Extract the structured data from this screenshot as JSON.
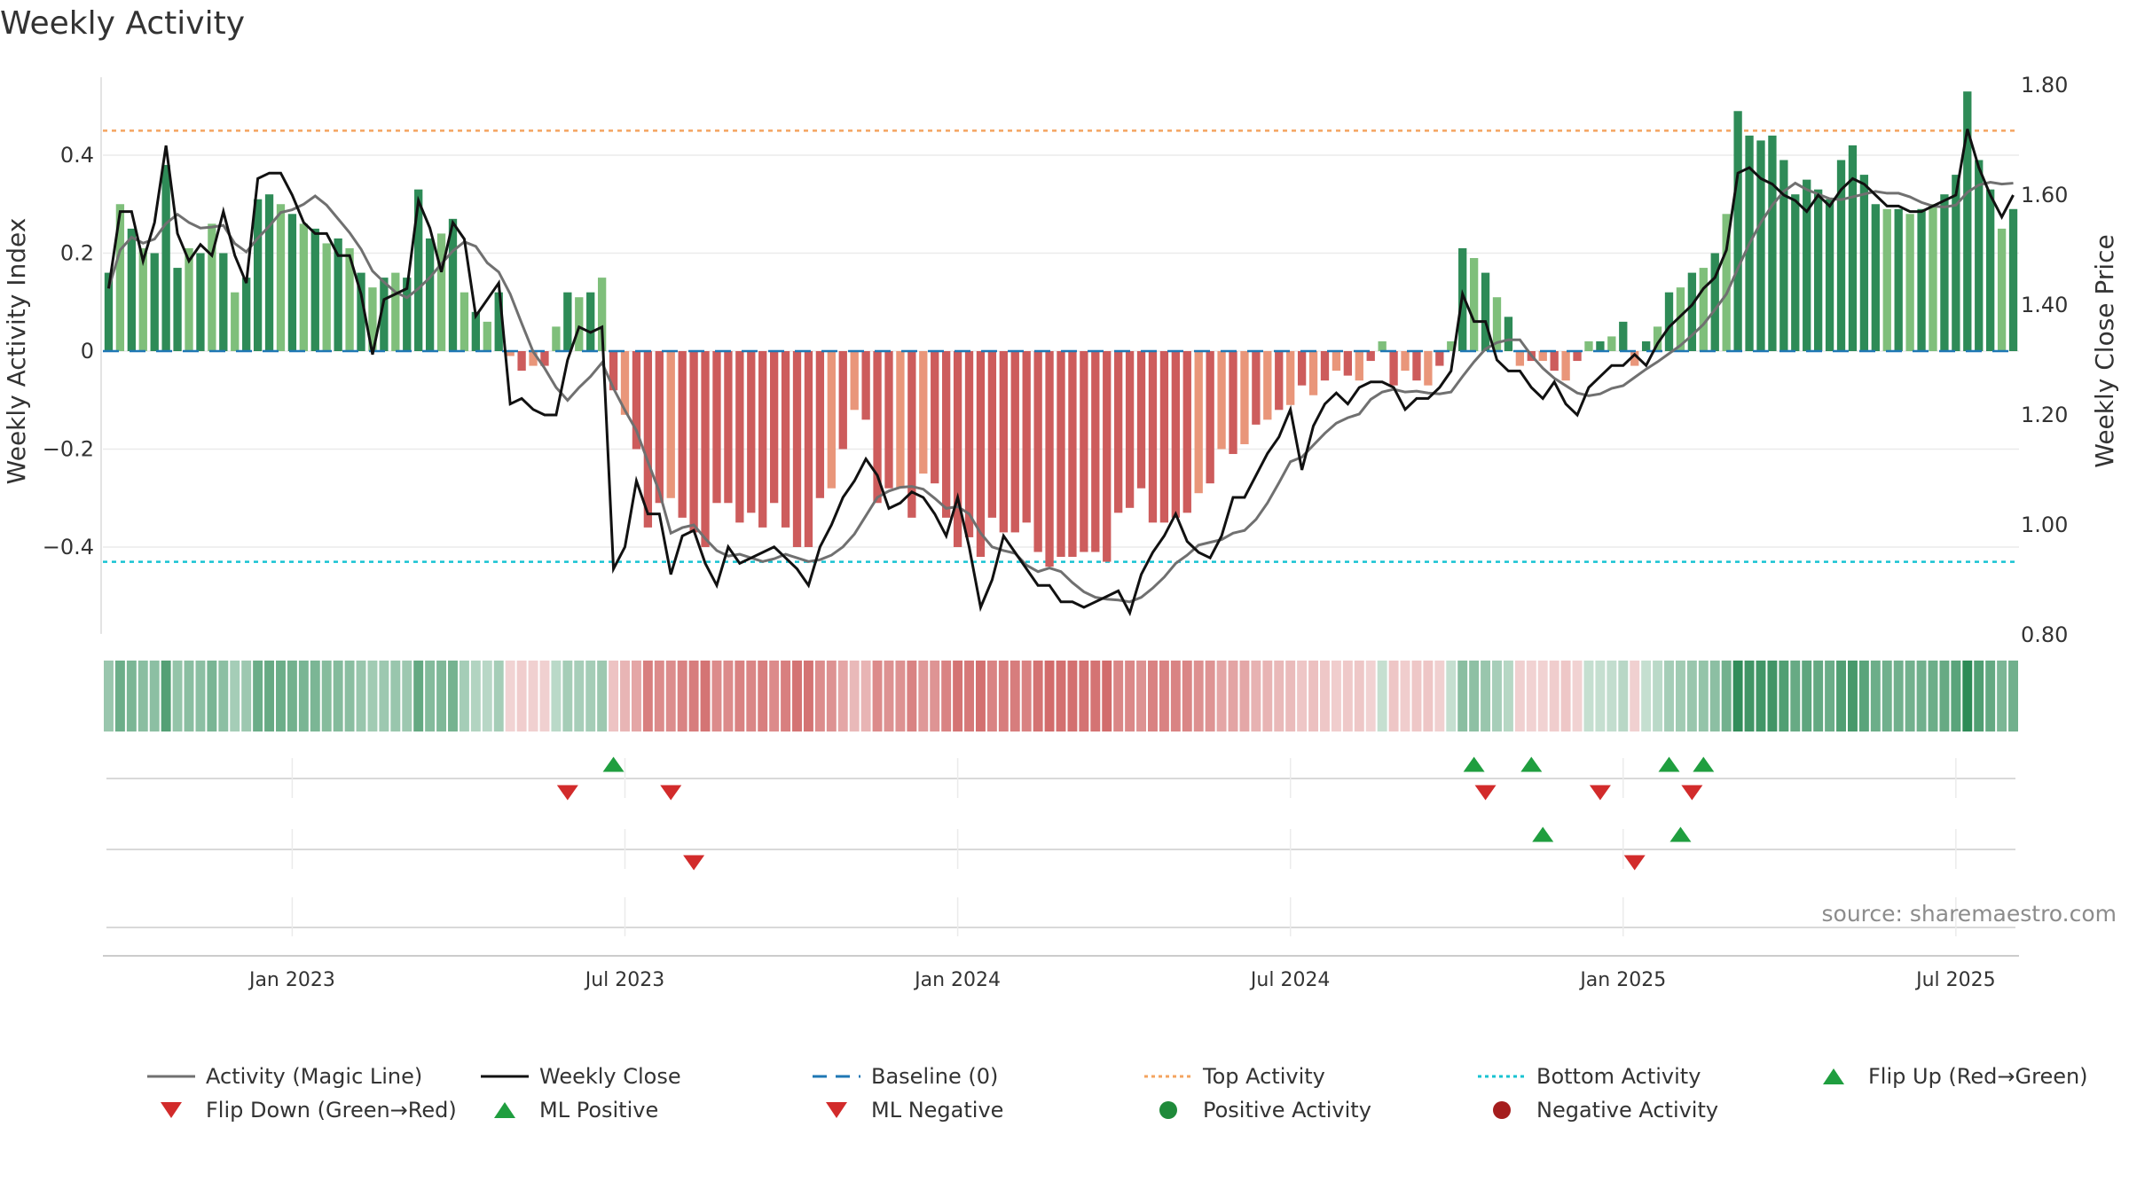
{
  "chart_data": {
    "type": "bar",
    "title": "Weekly Activity",
    "ylabel": "Weekly Activity Index",
    "y2label": "Weekly Close Price",
    "ylim": [
      -0.57,
      0.57
    ],
    "y2lim": [
      0.8,
      1.8
    ],
    "yticks": [
      {
        "value": 0.4,
        "label": "0.4"
      },
      {
        "value": 0.2,
        "label": "0.2"
      },
      {
        "value": 0,
        "label": "0"
      },
      {
        "value": -0.2,
        "label": "−0.2"
      },
      {
        "value": -0.4,
        "label": "−0.4"
      }
    ],
    "y2ticks": [
      {
        "value": 1.8,
        "label": "1.80"
      },
      {
        "value": 1.6,
        "label": "1.60"
      },
      {
        "value": 1.4,
        "label": "1.40"
      },
      {
        "value": 1.2,
        "label": "1.20"
      },
      {
        "value": 1.0,
        "label": "1.00"
      },
      {
        "value": 0.8,
        "label": "0.80"
      }
    ],
    "xticks": [
      {
        "week": 16.5,
        "label": "Jan 2023"
      },
      {
        "week": 45.5,
        "label": "Jul 2023"
      },
      {
        "week": 74.5,
        "label": "Jan 2024"
      },
      {
        "week": 103.5,
        "label": "Jul 2024"
      },
      {
        "week": 132.5,
        "label": "Jan 2025"
      },
      {
        "week": 161.5,
        "label": "Jul 2025"
      }
    ],
    "top_activity": 0.45,
    "bottom_activity": -0.43,
    "source": "source: sharemaestro.com",
    "activity": [
      0.16,
      0.3,
      0.25,
      0.21,
      0.2,
      0.38,
      0.17,
      0.21,
      0.2,
      0.26,
      0.2,
      0.12,
      0.15,
      0.31,
      0.32,
      0.3,
      0.28,
      0.26,
      0.25,
      0.22,
      0.23,
      0.21,
      0.16,
      0.13,
      0.15,
      0.16,
      0.15,
      0.33,
      0.23,
      0.24,
      0.27,
      0.12,
      0.08,
      0.06,
      0.12,
      -0.01,
      -0.04,
      -0.03,
      -0.03,
      0.05,
      0.12,
      0.11,
      0.12,
      0.15,
      -0.08,
      -0.13,
      -0.2,
      -0.36,
      -0.31,
      -0.3,
      -0.34,
      -0.37,
      -0.4,
      -0.31,
      -0.31,
      -0.35,
      -0.33,
      -0.36,
      -0.31,
      -0.36,
      -0.4,
      -0.4,
      -0.3,
      -0.28,
      -0.2,
      -0.12,
      -0.14,
      -0.31,
      -0.28,
      -0.28,
      -0.34,
      -0.25,
      -0.27,
      -0.34,
      -0.4,
      -0.38,
      -0.42,
      -0.34,
      -0.37,
      -0.37,
      -0.35,
      -0.41,
      -0.44,
      -0.42,
      -0.42,
      -0.41,
      -0.41,
      -0.43,
      -0.33,
      -0.32,
      -0.28,
      -0.35,
      -0.35,
      -0.34,
      -0.33,
      -0.29,
      -0.27,
      -0.2,
      -0.21,
      -0.19,
      -0.15,
      -0.14,
      -0.12,
      -0.11,
      -0.07,
      -0.09,
      -0.06,
      -0.04,
      -0.05,
      -0.06,
      -0.02,
      0.02,
      -0.07,
      -0.04,
      -0.06,
      -0.07,
      -0.03,
      0.02,
      0.21,
      0.19,
      0.16,
      0.11,
      0.07,
      -0.03,
      -0.02,
      -0.02,
      -0.04,
      -0.06,
      -0.02,
      0.02,
      0.02,
      0.03,
      0.06,
      -0.03,
      0.02,
      0.05,
      0.12,
      0.13,
      0.16,
      0.17,
      0.2,
      0.28,
      0.49,
      0.44,
      0.43,
      0.44,
      0.39,
      0.32,
      0.35,
      0.33,
      0.31,
      0.39,
      0.42,
      0.36,
      0.3,
      0.29,
      0.29,
      0.28,
      0.29,
      0.3,
      0.32,
      0.36,
      0.53,
      0.39,
      0.33,
      0.25,
      0.29
    ],
    "weekly_close": [
      1.43,
      1.57,
      1.57,
      1.48,
      1.55,
      1.69,
      1.53,
      1.48,
      1.51,
      1.49,
      1.57,
      1.49,
      1.44,
      1.63,
      1.64,
      1.64,
      1.6,
      1.55,
      1.53,
      1.53,
      1.49,
      1.49,
      1.42,
      1.31,
      1.41,
      1.42,
      1.43,
      1.59,
      1.54,
      1.46,
      1.55,
      1.52,
      1.38,
      1.41,
      1.44,
      1.22,
      1.23,
      1.21,
      1.2,
      1.2,
      1.3,
      1.36,
      1.35,
      1.36,
      0.92,
      0.96,
      1.08,
      1.02,
      1.02,
      0.91,
      0.98,
      0.99,
      0.93,
      0.89,
      0.96,
      0.93,
      0.94,
      0.95,
      0.96,
      0.94,
      0.92,
      0.89,
      0.96,
      1.0,
      1.05,
      1.08,
      1.12,
      1.09,
      1.03,
      1.04,
      1.06,
      1.05,
      1.02,
      0.98,
      1.05,
      0.96,
      0.85,
      0.9,
      0.98,
      0.95,
      0.92,
      0.89,
      0.89,
      0.86,
      0.86,
      0.85,
      0.86,
      0.87,
      0.88,
      0.84,
      0.91,
      0.95,
      0.98,
      1.02,
      0.97,
      0.95,
      0.94,
      0.98,
      1.05,
      1.05,
      1.09,
      1.13,
      1.16,
      1.21,
      1.1,
      1.18,
      1.22,
      1.24,
      1.22,
      1.25,
      1.26,
      1.26,
      1.25,
      1.21,
      1.23,
      1.23,
      1.25,
      1.28,
      1.42,
      1.37,
      1.37,
      1.3,
      1.28,
      1.28,
      1.25,
      1.23,
      1.26,
      1.22,
      1.2,
      1.25,
      1.27,
      1.29,
      1.29,
      1.31,
      1.29,
      1.33,
      1.36,
      1.38,
      1.4,
      1.43,
      1.45,
      1.5,
      1.64,
      1.65,
      1.63,
      1.62,
      1.6,
      1.59,
      1.57,
      1.6,
      1.58,
      1.61,
      1.63,
      1.62,
      1.6,
      1.58,
      1.58,
      1.57,
      1.57,
      1.58,
      1.59,
      1.6,
      1.72,
      1.65,
      1.6,
      1.56,
      1.6
    ],
    "legend": [
      {
        "label": "Activity (Magic Line)",
        "marker": "line-gray"
      },
      {
        "label": "Weekly Close",
        "marker": "line-black"
      },
      {
        "label": "Baseline (0)",
        "marker": "dash-blue"
      },
      {
        "label": "Top Activity",
        "marker": "dot-orange"
      },
      {
        "label": "Bottom Activity",
        "marker": "dot-cyan"
      },
      {
        "label": "Flip Up (Red→Green)",
        "marker": "tri-up-green"
      },
      {
        "label": "Flip Down (Green→Red)",
        "marker": "tri-down-red"
      },
      {
        "label": "ML Positive",
        "marker": "tri-up-green"
      },
      {
        "label": "ML Negative",
        "marker": "tri-down-red"
      },
      {
        "label": "Positive Activity",
        "marker": "circle-green"
      },
      {
        "label": "Negative Activity",
        "marker": "circle-red"
      }
    ],
    "flip_up_weeks": [
      44,
      119,
      124,
      136,
      139
    ],
    "flip_down_weeks": [
      40,
      49,
      120,
      130,
      138
    ],
    "ml_positive_weeks": [
      125,
      137
    ],
    "ml_negative_weeks": [
      51,
      133
    ]
  },
  "colors": {
    "pos_dark": "#2e8b57",
    "pos_light": "#7fbf7b",
    "neg_dark": "#cd5c5c",
    "neg_light": "#e9967a",
    "magic_line": "#707070",
    "close_line": "#111111",
    "baseline": "#1f77b4",
    "top_line": "#f4a460",
    "bottom_line": "#17c3d2",
    "marker_green": "#1f9e3f",
    "marker_red": "#d22b2b"
  }
}
